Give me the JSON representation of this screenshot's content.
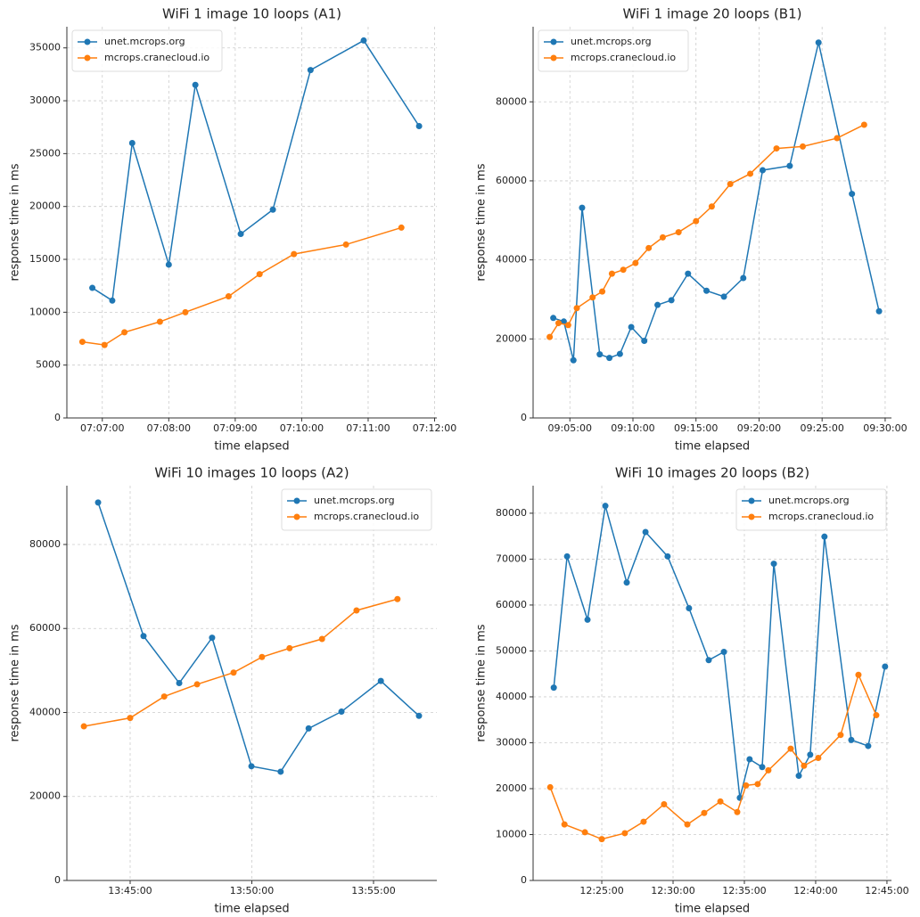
{
  "chart_data": [
    {
      "type": "line",
      "title": "WiFi 1 image 10 loops (A1)",
      "x_label": "time elapsed",
      "y_label": "response time in ms",
      "grid": true,
      "legend": "upper left",
      "xlim": [
        "07:06:28",
        "07:12:02"
      ],
      "xticks": [
        "07:07:00",
        "07:08:00",
        "07:09:00",
        "07:10:00",
        "07:11:00",
        "07:12:00"
      ],
      "ylim": [
        0,
        37000
      ],
      "yticks": [
        0,
        5000,
        10000,
        15000,
        20000,
        25000,
        30000,
        35000
      ],
      "series": [
        {
          "name": "unet.mcrops.org",
          "color": "#1f77b4",
          "x": [
            "07:06:51",
            "07:07:09",
            "07:07:27",
            "07:08:00",
            "07:08:24",
            "07:09:05",
            "07:09:34",
            "07:10:08",
            "07:10:56",
            "07:11:46"
          ],
          "values": [
            12300,
            11100,
            26000,
            14500,
            31500,
            17400,
            19700,
            32900,
            35700,
            27600
          ]
        },
        {
          "name": "mcrops.cranecloud.io",
          "color": "#ff7f0e",
          "x": [
            "07:06:42",
            "07:07:02",
            "07:07:20",
            "07:07:52",
            "07:08:15",
            "07:08:54",
            "07:09:22",
            "07:09:53",
            "07:10:40",
            "07:11:30"
          ],
          "values": [
            7200,
            6900,
            8100,
            9100,
            10000,
            11500,
            13600,
            15500,
            16400,
            18000
          ]
        }
      ]
    },
    {
      "type": "line",
      "title": "WiFi 1 image 20 loops (B1)",
      "x_label": "time elapsed",
      "y_label": "response time in ms",
      "grid": true,
      "legend": "upper left",
      "xlim": [
        "09:02:05",
        "09:30:30"
      ],
      "xticks": [
        "09:05:00",
        "09:10:00",
        "09:15:00",
        "09:20:00",
        "09:25:00",
        "09:30:00"
      ],
      "ylim": [
        0,
        99000
      ],
      "yticks": [
        0,
        20000,
        40000,
        60000,
        80000
      ],
      "series": [
        {
          "name": "unet.mcrops.org",
          "color": "#1f77b4",
          "x": [
            "09:03:41",
            "09:04:31",
            "09:05:17",
            "09:05:58",
            "09:07:22",
            "09:08:08",
            "09:08:58",
            "09:09:52",
            "09:10:54",
            "09:11:57",
            "09:13:03",
            "09:14:22",
            "09:15:50",
            "09:17:13",
            "09:18:45",
            "09:20:17",
            "09:22:26",
            "09:24:43",
            "09:27:22",
            "09:29:31"
          ],
          "values": [
            25300,
            24400,
            14600,
            53200,
            16100,
            15200,
            16200,
            23000,
            19500,
            28600,
            29800,
            36500,
            32200,
            30700,
            35400,
            62700,
            63800,
            95000,
            56700,
            27000
          ]
        },
        {
          "name": "mcrops.cranecloud.io",
          "color": "#ff7f0e",
          "x": [
            "09:03:24",
            "09:04:06",
            "09:04:52",
            "09:05:33",
            "09:06:48",
            "09:07:34",
            "09:08:20",
            "09:09:14",
            "09:10:12",
            "09:11:15",
            "09:12:22",
            "09:13:37",
            "09:15:00",
            "09:16:15",
            "09:17:43",
            "09:19:18",
            "09:21:23",
            "09:23:28",
            "09:26:11",
            "09:28:20"
          ],
          "values": [
            20500,
            24000,
            23500,
            27800,
            30500,
            32000,
            36500,
            37500,
            39200,
            43000,
            45700,
            47000,
            49800,
            53500,
            59200,
            61800,
            68200,
            68700,
            70800,
            74200
          ]
        }
      ]
    },
    {
      "type": "line",
      "title": "WiFi 10 images 10 loops  (A2)",
      "x_label": "time elapsed",
      "y_label": "response time in ms",
      "grid": true,
      "legend": "upper right",
      "xlim": [
        "13:42:24",
        "13:57:36"
      ],
      "xticks": [
        "13:45:00",
        "13:50:00",
        "13:55:00"
      ],
      "ylim": [
        0,
        94000
      ],
      "yticks": [
        0,
        20000,
        40000,
        60000,
        80000
      ],
      "series": [
        {
          "name": "unet.mcrops.org",
          "color": "#1f77b4",
          "x": [
            "13:43:41",
            "13:45:33",
            "13:47:01",
            "13:48:22",
            "13:49:59",
            "13:51:11",
            "13:52:20",
            "13:53:41",
            "13:55:18",
            "13:56:52"
          ],
          "values": [
            90000,
            58200,
            47000,
            57800,
            27200,
            25900,
            36200,
            40200,
            47500,
            39200
          ]
        },
        {
          "name": "mcrops.cranecloud.io",
          "color": "#ff7f0e",
          "x": [
            "13:43:06",
            "13:45:00",
            "13:46:24",
            "13:47:45",
            "13:49:15",
            "13:50:25",
            "13:51:33",
            "13:52:53",
            "13:54:18",
            "13:55:59"
          ],
          "values": [
            36700,
            38700,
            43800,
            46700,
            49500,
            53200,
            55300,
            57500,
            64300,
            67000
          ]
        }
      ]
    },
    {
      "type": "line",
      "title": "WiFi 10 images 20 loops  (B2)",
      "x_label": "time elapsed",
      "y_label": "response time in ms",
      "grid": true,
      "legend": "upper right",
      "xlim": [
        "12:20:11",
        "12:45:19"
      ],
      "xticks": [
        "12:25:00",
        "12:30:00",
        "12:35:00",
        "12:40:00",
        "12:45:00"
      ],
      "ylim": [
        0,
        86000
      ],
      "yticks": [
        0,
        10000,
        20000,
        30000,
        40000,
        50000,
        60000,
        70000,
        80000
      ],
      "series": [
        {
          "name": "unet.mcrops.org",
          "color": "#1f77b4",
          "x": [
            "12:21:38",
            "12:22:34",
            "12:24:00",
            "12:25:15",
            "12:26:45",
            "12:28:04",
            "12:29:37",
            "12:31:07",
            "12:32:30",
            "12:33:34",
            "12:34:41",
            "12:35:22",
            "12:36:15",
            "12:37:04",
            "12:38:49",
            "12:39:37",
            "12:40:37",
            "12:42:30",
            "12:43:41",
            "12:44:52"
          ],
          "values": [
            42000,
            70600,
            56800,
            81600,
            64900,
            75900,
            70600,
            59300,
            48000,
            49800,
            18000,
            26400,
            24700,
            69000,
            22800,
            27400,
            74900,
            30600,
            29300,
            46600
          ]
        },
        {
          "name": "mcrops.cranecloud.io",
          "color": "#ff7f0e",
          "x": [
            "12:21:23",
            "12:22:23",
            "12:23:49",
            "12:25:00",
            "12:26:37",
            "12:27:56",
            "12:29:22",
            "12:31:00",
            "12:32:11",
            "12:33:19",
            "12:34:30",
            "12:35:07",
            "12:35:56",
            "12:36:41",
            "12:38:15",
            "12:39:11",
            "12:40:11",
            "12:41:45",
            "12:43:00",
            "12:44:15"
          ],
          "values": [
            20300,
            12200,
            10500,
            9000,
            10300,
            12800,
            16600,
            12200,
            14700,
            17200,
            14900,
            20700,
            21000,
            24000,
            28700,
            25000,
            26700,
            31700,
            44800,
            36000
          ]
        }
      ]
    }
  ]
}
